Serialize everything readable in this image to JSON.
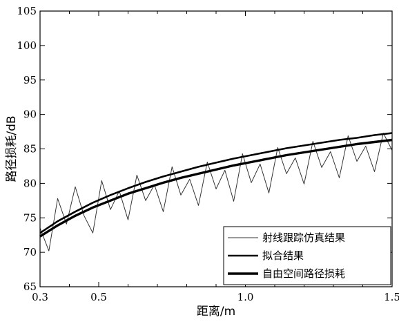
{
  "chart_data": {
    "type": "line",
    "xlabel": "距离/m",
    "ylabel": "路径损耗/dB",
    "xlim": [
      0.3,
      1.5
    ],
    "ylim": [
      65,
      105
    ],
    "x_ticks": [
      {
        "value": 0.3,
        "label": "0.3"
      },
      {
        "value": 0.5,
        "label": "0.5"
      },
      {
        "value": 1.0,
        "label": "1.0"
      },
      {
        "value": 1.5,
        "label": "1.5"
      }
    ],
    "x_minor_ticks": [
      0.4,
      0.6,
      0.7,
      0.8,
      0.9,
      1.1,
      1.2,
      1.3,
      1.4
    ],
    "y_ticks": [
      {
        "value": 65,
        "label": "65"
      },
      {
        "value": 70,
        "label": "70"
      },
      {
        "value": 75,
        "label": "75"
      },
      {
        "value": 80,
        "label": "80"
      },
      {
        "value": 85,
        "label": "85"
      },
      {
        "value": 90,
        "label": "90"
      },
      {
        "value": 95,
        "label": "95"
      },
      {
        "value": 100,
        "label": "100"
      },
      {
        "value": 105,
        "label": "105"
      }
    ],
    "grid": false,
    "legend_position": "bottom-right",
    "series": [
      {
        "name": "射线跟踪仿真结果",
        "color": "#333333",
        "x": [
          0.3,
          0.33,
          0.36,
          0.39,
          0.42,
          0.45,
          0.48,
          0.51,
          0.54,
          0.57,
          0.6,
          0.63,
          0.66,
          0.69,
          0.72,
          0.75,
          0.78,
          0.81,
          0.84,
          0.87,
          0.9,
          0.93,
          0.96,
          0.99,
          1.02,
          1.05,
          1.08,
          1.11,
          1.14,
          1.17,
          1.2,
          1.23,
          1.26,
          1.29,
          1.32,
          1.35,
          1.38,
          1.41,
          1.44,
          1.47,
          1.5
        ],
        "y": [
          73.5,
          70.2,
          77.8,
          74.1,
          79.5,
          75.3,
          72.8,
          80.4,
          76.2,
          78.9,
          74.7,
          81.2,
          77.5,
          79.8,
          75.9,
          82.4,
          78.3,
          80.6,
          76.8,
          83.1,
          79.2,
          81.9,
          77.4,
          84.3,
          80.1,
          82.8,
          78.6,
          85.2,
          81.4,
          83.7,
          79.9,
          86.1,
          82.3,
          84.6,
          80.8,
          86.9,
          83.2,
          85.4,
          81.7,
          87.3,
          84.8
        ]
      },
      {
        "name": "拟合结果",
        "color": "#000000",
        "x": [
          0.3,
          0.36,
          0.42,
          0.48,
          0.54,
          0.6,
          0.66,
          0.72,
          0.78,
          0.84,
          0.9,
          0.96,
          1.02,
          1.08,
          1.14,
          1.2,
          1.26,
          1.32,
          1.38,
          1.44,
          1.5
        ],
        "y": [
          72.8,
          74.5,
          75.9,
          77.2,
          78.3,
          79.3,
          80.2,
          81.0,
          81.7,
          82.4,
          83.0,
          83.6,
          84.1,
          84.6,
          85.1,
          85.5,
          85.9,
          86.3,
          86.6,
          87.0,
          87.3
        ]
      },
      {
        "name": "自由空间路径损耗",
        "color": "#000000",
        "x": [
          0.3,
          0.36,
          0.42,
          0.48,
          0.54,
          0.6,
          0.66,
          0.72,
          0.78,
          0.84,
          0.9,
          0.96,
          1.02,
          1.08,
          1.14,
          1.2,
          1.26,
          1.32,
          1.38,
          1.44,
          1.5
        ],
        "y": [
          72.3,
          73.9,
          75.3,
          76.5,
          77.5,
          78.5,
          79.3,
          80.1,
          80.8,
          81.4,
          82.0,
          82.6,
          83.1,
          83.6,
          84.1,
          84.5,
          84.9,
          85.3,
          85.7,
          86.0,
          86.3
        ]
      }
    ]
  }
}
